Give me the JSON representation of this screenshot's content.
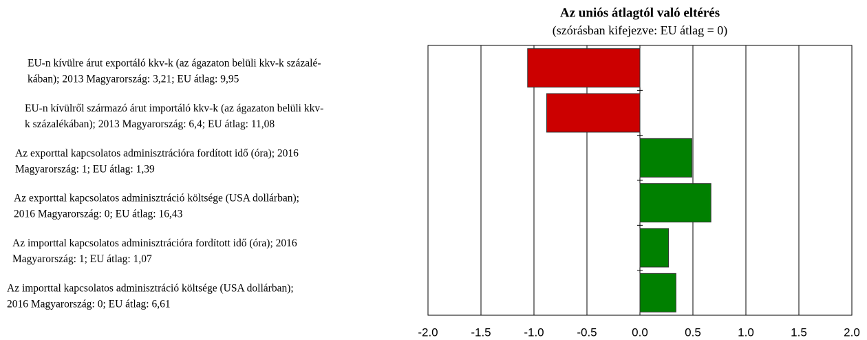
{
  "chart_data": {
    "type": "barh",
    "title": "Az uniós átlagtól való eltérés",
    "subtitle": "(szórásban kifejezve: EU átlag = 0)",
    "categories": [
      "EU-n kívülre árut exportáló kkv-k (az ágazaton belüli kkv-k százalé-\nkában); 2013 Magyarország: 3,21; EU átlag: 9,95",
      "EU-n kívülről származó árut importáló kkv-k (az ágazaton belüli kkv-\nk százalékában); 2013 Magyarország: 6,4; EU átlag: 11,08",
      "Az exporttal kapcsolatos adminisztrációra fordított idő (óra); 2016\nMagyarország: 1; EU átlag: 1,39",
      "Az exporttal kapcsolatos adminisztráció költsége (USA dollárban);\n2016 Magyarország: 0; EU átlag: 16,43",
      "Az importtal kapcsolatos adminisztrációra fordított idő (óra); 2016\nMagyarország: 1; EU átlag: 1,07",
      "Az importtal kapcsolatos adminisztráció költsége (USA dollárban);\n2016 Magyarország: 0; EU átlag: 6,61"
    ],
    "values": [
      -1.06,
      -0.88,
      0.49,
      0.67,
      0.27,
      0.34
    ],
    "negative_color": "#cc0000",
    "positive_color": "#008000",
    "xlim": [
      -2.0,
      2.0
    ],
    "xticks": [
      {
        "value": -2.0,
        "label": "-2.0"
      },
      {
        "value": -1.5,
        "label": "-1.5"
      },
      {
        "value": -1.0,
        "label": "-1.0"
      },
      {
        "value": -0.5,
        "label": "-0.5"
      },
      {
        "value": 0.0,
        "label": "0.0"
      },
      {
        "value": 0.5,
        "label": "0.5"
      },
      {
        "value": 1.0,
        "label": "1.0"
      },
      {
        "value": 1.5,
        "label": "1.5"
      },
      {
        "value": 2.0,
        "label": "2.0"
      }
    ],
    "grid": true
  }
}
